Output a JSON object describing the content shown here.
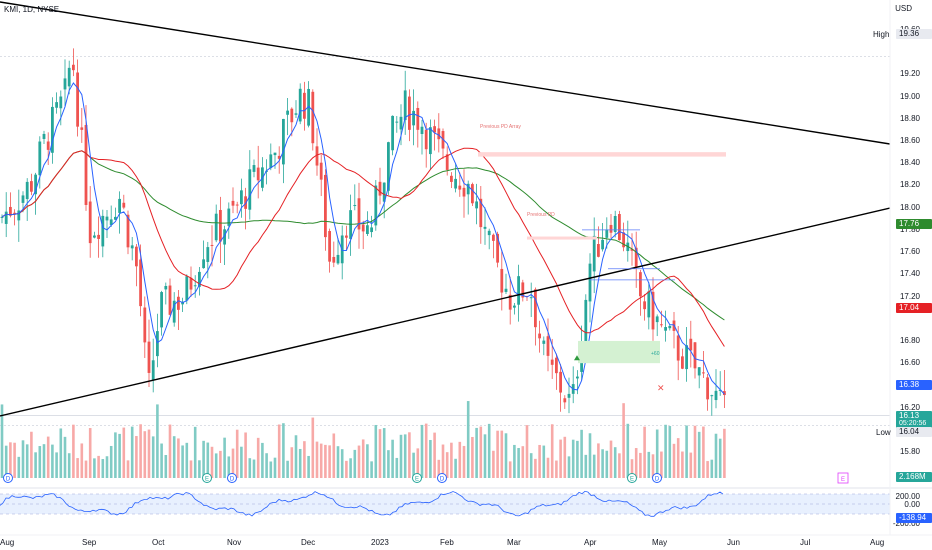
{
  "header": {
    "ticker": "KMI, 1D, NYSE",
    "currency": "USD"
  },
  "chart_data": {
    "type": "candlestick",
    "y_ticks": [
      "19.60",
      "19.20",
      "19.00",
      "18.80",
      "18.60",
      "18.40",
      "18.20",
      "18.00",
      "17.80",
      "17.60",
      "17.40",
      "17.20",
      "16.80",
      "16.60",
      "16.20",
      "15.80"
    ],
    "x_ticks": [
      "Aug",
      "Sep",
      "Oct",
      "Nov",
      "Dec",
      "2023",
      "Feb",
      "Mar",
      "Apr",
      "May",
      "Jun",
      "Jul",
      "Aug"
    ],
    "price_tags": {
      "high_label": "High",
      "high_value": "19.36",
      "ema50": "17.76",
      "ema20": "17.04",
      "ema10": "16.38",
      "last": "16.13",
      "countdown": "05:20:56",
      "low_label": "Low",
      "low_value": "16.04",
      "volume": "2.168M"
    },
    "annotations": {
      "previous_array": "Previous PD Array",
      "previous_pd": "Previous PD",
      "gain": "+60"
    },
    "oscillator": {
      "levels": [
        "200.00",
        "0.00",
        "-200.00"
      ],
      "value": "-138.94"
    },
    "colors": {
      "up": "#26a69a",
      "down": "#ef5350",
      "ma_fast": "#2962ff",
      "ma_mid": "#e52125",
      "ma_slow": "#2e8b2e",
      "trendline": "#000000"
    },
    "events": [
      "E",
      "D"
    ]
  }
}
